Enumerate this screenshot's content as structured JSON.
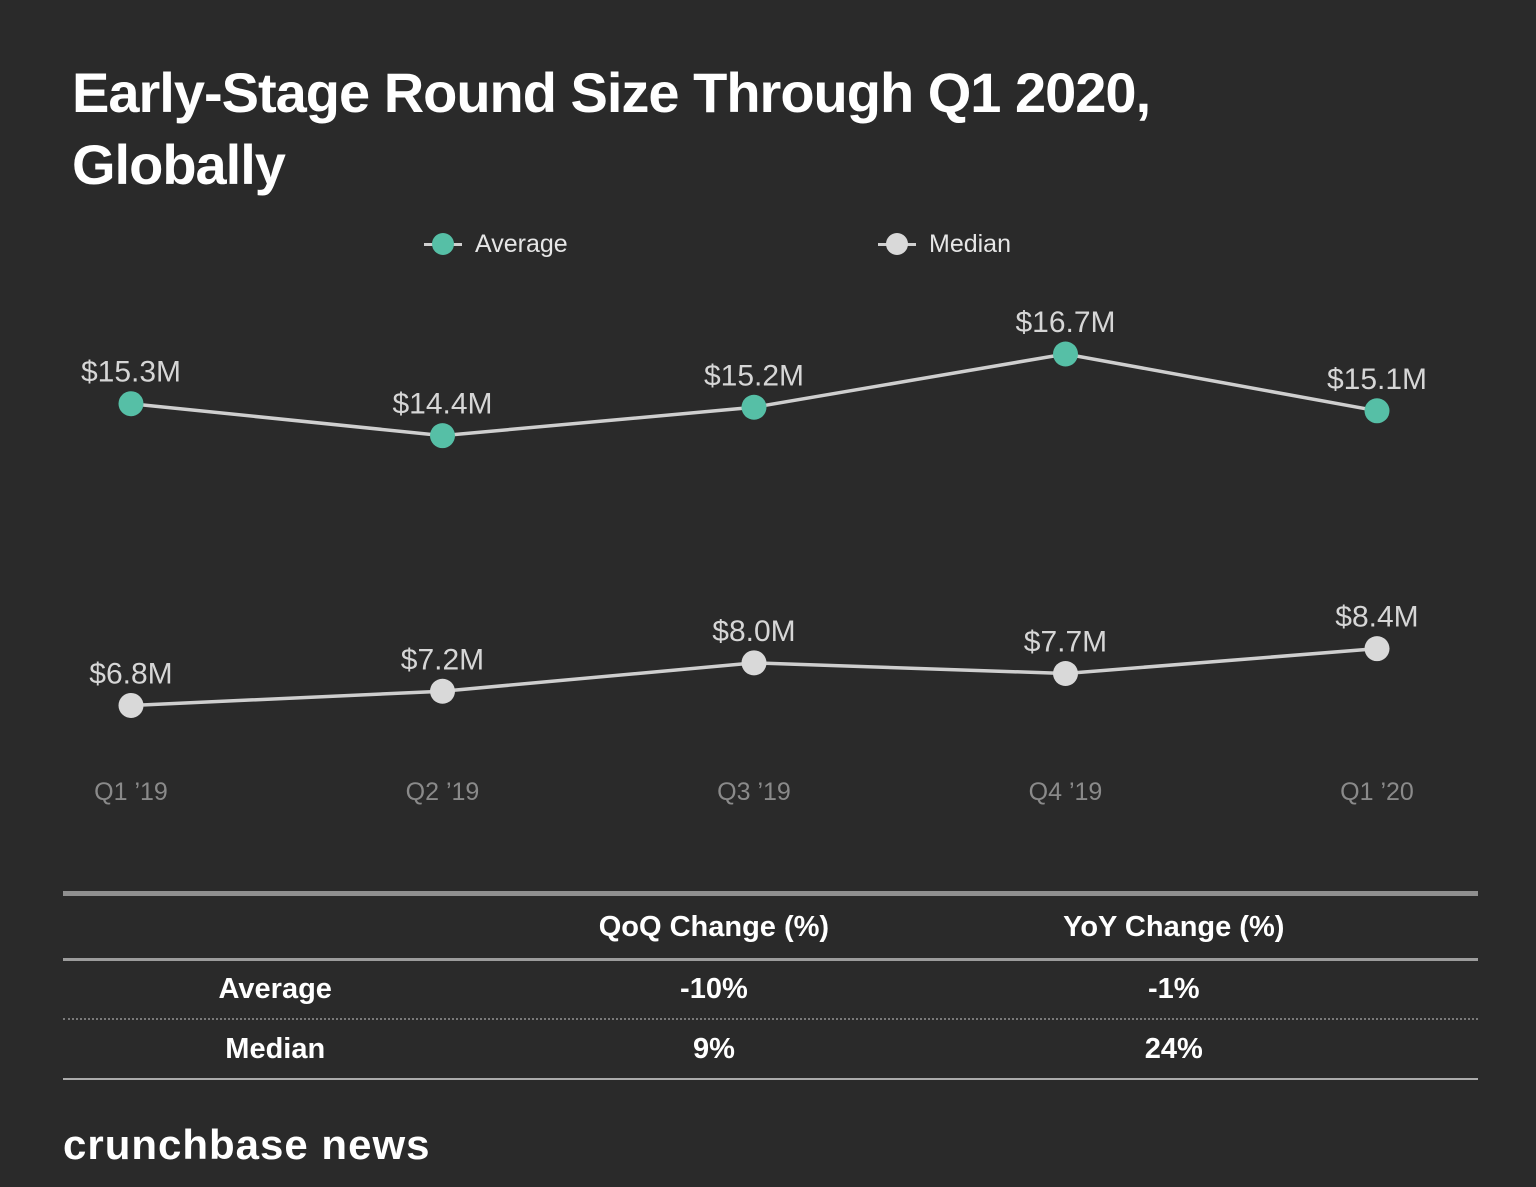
{
  "header": {
    "title_line1": "Early-Stage Round Size Through Q1 2020,",
    "title_line2": "Globally"
  },
  "colors": {
    "background": "#2a2a2a",
    "average": "#56bfa6",
    "median": "#d9d9d9",
    "line": "#cfcfcf",
    "value_label": "#d6d6d6",
    "axis_label": "#8a8a8a"
  },
  "chart_data": {
    "type": "line",
    "title": "Early-Stage Round Size Through Q1 2020, Globally",
    "categories": [
      "Q1 ’19",
      "Q2 ’19",
      "Q3 ’19",
      "Q4 ’19",
      "Q1 ’20"
    ],
    "series": [
      {
        "name": "Average",
        "values": [
          15.3,
          14.4,
          15.2,
          16.7,
          15.1
        ],
        "labels": [
          "$15.3M",
          "$14.4M",
          "$15.2M",
          "$16.7M",
          "$15.1M"
        ],
        "marker_color": "#56bfa6"
      },
      {
        "name": "Median",
        "values": [
          6.8,
          7.2,
          8.0,
          7.7,
          8.4
        ],
        "labels": [
          "$6.8M",
          "$7.2M",
          "$8.0M",
          "$7.7M",
          "$8.4M"
        ],
        "marker_color": "#d9d9d9"
      }
    ],
    "unit": "$M (USD millions)",
    "xlabel": "",
    "ylabel": "",
    "grid": false,
    "legend_position": "top"
  },
  "table": {
    "headers": {
      "label": "",
      "qoq": "QoQ Change (%)",
      "yoy": "YoY Change (%)"
    },
    "rows": [
      {
        "label": "Average",
        "qoq": "-10%",
        "yoy": "-1%"
      },
      {
        "label": "Median",
        "qoq": "9%",
        "yoy": "24%"
      }
    ]
  },
  "footer": {
    "brand": "crunchbase news"
  }
}
